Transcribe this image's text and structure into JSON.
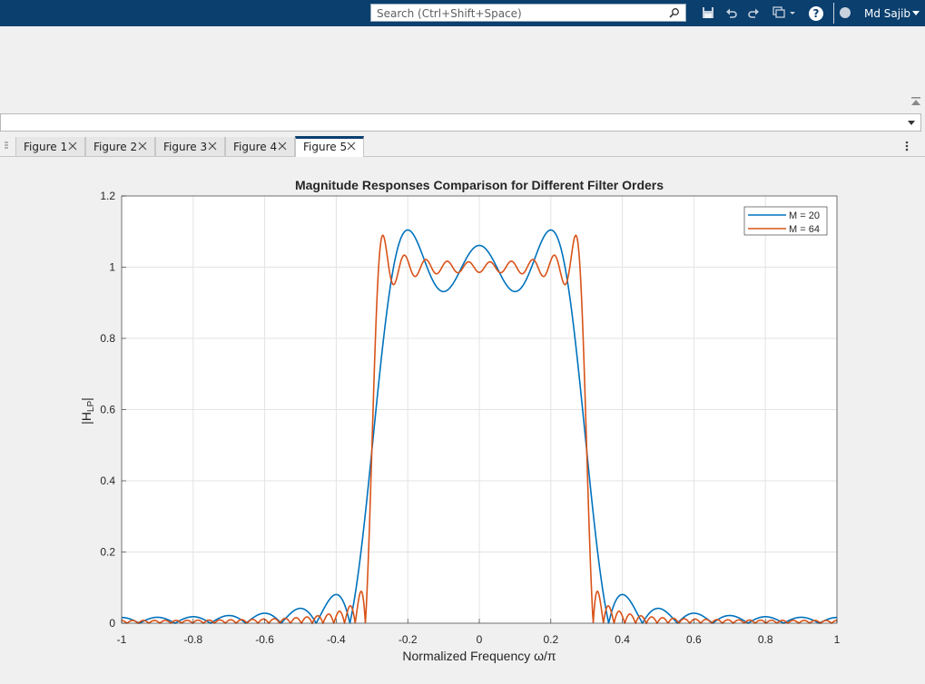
{
  "toolbar": {
    "search_placeholder": "Search (Ctrl+Shift+Space)",
    "help_label": "?",
    "user_name": "Md Sajib",
    "icons": [
      "save-icon",
      "undo-icon",
      "redo-icon",
      "window-layout-icon",
      "help-icon",
      "user-menu-icon"
    ]
  },
  "tabs": [
    {
      "label": "Figure 1",
      "active": false
    },
    {
      "label": "Figure 2",
      "active": false
    },
    {
      "label": "Figure 3",
      "active": false
    },
    {
      "label": "Figure 4",
      "active": false
    },
    {
      "label": "Figure 5",
      "active": true
    }
  ],
  "colors": {
    "accent": "#0a3f6e",
    "series1": "#0072bd",
    "series2": "#d95319"
  },
  "chart_data": {
    "type": "line",
    "title": "Magnitude Responses Comparison for Different Filter Orders",
    "xlabel": "Normalized Frequency ω/π",
    "ylabel": "|H",
    "ylabel_sub": "LP",
    "ylabel_end": "|",
    "xlim": [
      -1,
      1
    ],
    "ylim": [
      0,
      1.2
    ],
    "xticks": [
      "-1",
      "-0.8",
      "-0.6",
      "-0.4",
      "-0.2",
      "0",
      "0.2",
      "0.4",
      "0.6",
      "0.8",
      "1"
    ],
    "yticks": [
      "0",
      "0.2",
      "0.4",
      "0.6",
      "0.8",
      "1",
      "1.2"
    ],
    "grid": true,
    "legend_position": "top-right",
    "series": [
      {
        "name": "M = 20",
        "color": "#0072bd",
        "filter_order": 20,
        "cutoff": 0.3
      },
      {
        "name": "M = 64",
        "color": "#d95319",
        "filter_order": 64,
        "cutoff": 0.3
      }
    ]
  }
}
